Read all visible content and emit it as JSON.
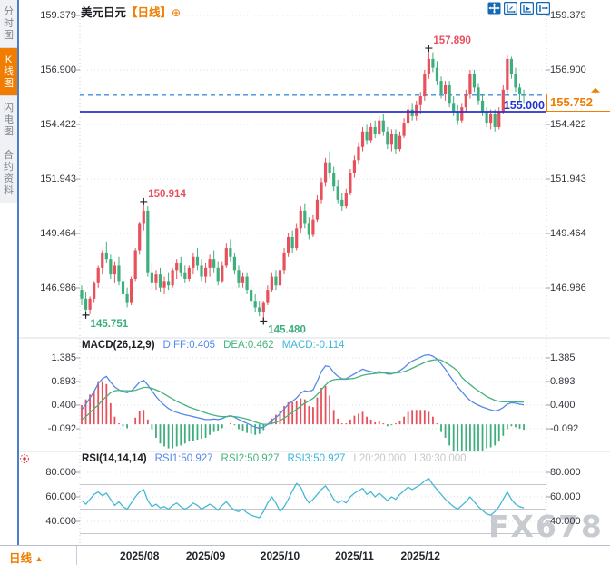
{
  "window": {
    "symbol": "美元日元",
    "period_bracket": "【日线】",
    "add_glyph": "⊕"
  },
  "sidebar": {
    "items": [
      {
        "label": "分时图",
        "selected": false
      },
      {
        "label": "K线图",
        "selected": true
      },
      {
        "label": "闪电图",
        "selected": false
      },
      {
        "label": "合约资料",
        "selected": false
      }
    ]
  },
  "toolbar": {
    "icons": [
      "pan-icon",
      "axis-scale-icon",
      "axis-playback-icon",
      "exit-right-icon"
    ]
  },
  "bottom_bar": {
    "period_label": "日线",
    "period_arrow": "▲"
  },
  "watermark": "FX678",
  "colors": {
    "up": "#e8505b",
    "down": "#3eae7d",
    "orange": "#f07d00",
    "solid_line_blue": "#2433cc",
    "dashed_line_blue": "#3f8fe0",
    "diff_blue": "#5588e8",
    "dea_green": "#44b37d",
    "macd_cyan": "#3db5d8",
    "rsi_line": "#45b8d4",
    "grid": "#d9dce1",
    "tick": "#9aa0a8",
    "axis_text": "#33373d"
  },
  "chart_data": {
    "type": "candlestick",
    "title": "美元日元 日线 (USD/JPY Daily)",
    "price_axis": [
      159.379,
      156.9,
      154.422,
      151.943,
      149.464,
      146.986
    ],
    "x_axis_labels": [
      "2025/08",
      "2025/09",
      "2025/10",
      "2025/11",
      "2025/12"
    ],
    "x_tick_indices": [
      14,
      30,
      48,
      66,
      82
    ],
    "current_price": "155.752",
    "alert_line_label": "155.000",
    "alert_line_value": 155.0,
    "dashed_line_value": 155.752,
    "annotations": [
      {
        "text": "157.890",
        "index": 84,
        "price": 157.89,
        "kind": "high",
        "color": "#e8505b"
      },
      {
        "text": "150.914",
        "index": 15,
        "price": 150.914,
        "kind": "high",
        "color": "#e8505b"
      },
      {
        "text": "145.751",
        "index": 1,
        "price": 145.751,
        "kind": "low",
        "color": "#3eae7d"
      },
      {
        "text": "145.480",
        "index": 44,
        "price": 145.48,
        "kind": "low",
        "color": "#3eae7d"
      }
    ],
    "candles": [
      [
        146.9,
        147.1,
        146.2,
        146.5
      ],
      [
        146.5,
        146.8,
        145.751,
        146.0
      ],
      [
        146.0,
        146.6,
        145.8,
        146.5
      ],
      [
        146.5,
        147.3,
        146.3,
        147.2
      ],
      [
        147.2,
        148.0,
        147.0,
        147.9
      ],
      [
        147.9,
        148.7,
        147.6,
        148.6
      ],
      [
        148.6,
        149.1,
        148.1,
        148.3
      ],
      [
        148.3,
        148.5,
        147.4,
        147.6
      ],
      [
        147.6,
        148.2,
        147.2,
        148.0
      ],
      [
        148.0,
        148.4,
        147.1,
        147.3
      ],
      [
        147.3,
        147.6,
        146.5,
        146.7
      ],
      [
        146.7,
        147.0,
        146.1,
        146.3
      ],
      [
        146.3,
        147.5,
        146.2,
        147.4
      ],
      [
        147.4,
        148.8,
        147.3,
        148.7
      ],
      [
        148.7,
        150.0,
        148.5,
        149.9
      ],
      [
        149.9,
        150.914,
        149.6,
        150.5
      ],
      [
        150.5,
        150.7,
        147.5,
        147.7
      ],
      [
        147.7,
        148.1,
        146.9,
        147.2
      ],
      [
        147.2,
        147.8,
        146.9,
        147.6
      ],
      [
        147.6,
        147.9,
        146.8,
        147.0
      ],
      [
        147.0,
        147.5,
        146.7,
        147.3
      ],
      [
        147.3,
        147.7,
        146.9,
        147.1
      ],
      [
        147.1,
        147.9,
        147.0,
        147.8
      ],
      [
        147.8,
        148.3,
        147.4,
        148.1
      ],
      [
        148.1,
        148.4,
        147.5,
        147.7
      ],
      [
        147.7,
        148.0,
        147.2,
        147.4
      ],
      [
        147.4,
        148.0,
        147.3,
        147.9
      ],
      [
        147.9,
        148.6,
        147.6,
        148.4
      ],
      [
        148.4,
        148.8,
        147.8,
        148.0
      ],
      [
        148.0,
        148.3,
        147.3,
        147.5
      ],
      [
        147.5,
        148.1,
        147.2,
        147.9
      ],
      [
        147.9,
        148.5,
        147.5,
        148.3
      ],
      [
        148.3,
        148.7,
        147.7,
        147.9
      ],
      [
        147.9,
        148.2,
        147.1,
        147.3
      ],
      [
        147.3,
        148.2,
        147.2,
        148.0
      ],
      [
        148.0,
        149.0,
        147.9,
        148.8
      ],
      [
        148.8,
        149.2,
        148.2,
        148.4
      ],
      [
        148.4,
        148.6,
        147.6,
        147.8
      ],
      [
        147.8,
        148.0,
        147.0,
        147.2
      ],
      [
        147.2,
        147.7,
        147.0,
        147.5
      ],
      [
        147.5,
        147.7,
        146.7,
        146.9
      ],
      [
        146.9,
        147.1,
        146.2,
        146.4
      ],
      [
        146.4,
        146.7,
        145.9,
        146.1
      ],
      [
        146.1,
        146.4,
        145.7,
        145.9
      ],
      [
        145.9,
        146.4,
        145.48,
        146.3
      ],
      [
        146.3,
        147.1,
        146.2,
        146.9
      ],
      [
        146.9,
        147.7,
        146.8,
        147.5
      ],
      [
        147.5,
        147.8,
        146.9,
        147.1
      ],
      [
        147.1,
        148.0,
        147.0,
        147.8
      ],
      [
        147.8,
        148.8,
        147.6,
        148.6
      ],
      [
        148.6,
        149.5,
        148.4,
        149.3
      ],
      [
        149.3,
        149.6,
        148.6,
        148.8
      ],
      [
        148.8,
        149.9,
        148.7,
        149.7
      ],
      [
        149.7,
        150.7,
        149.5,
        150.5
      ],
      [
        150.5,
        150.8,
        149.7,
        149.9
      ],
      [
        149.9,
        150.2,
        149.2,
        149.4
      ],
      [
        149.4,
        150.3,
        149.3,
        150.1
      ],
      [
        150.1,
        151.2,
        150.0,
        151.0
      ],
      [
        151.0,
        152.0,
        150.8,
        151.8
      ],
      [
        151.8,
        152.9,
        151.6,
        152.7
      ],
      [
        152.7,
        153.2,
        152.0,
        152.2
      ],
      [
        152.2,
        152.5,
        151.4,
        151.6
      ],
      [
        151.6,
        151.9,
        150.8,
        151.0
      ],
      [
        151.0,
        151.3,
        150.5,
        150.7
      ],
      [
        150.7,
        151.5,
        150.6,
        151.3
      ],
      [
        151.3,
        152.4,
        151.2,
        152.2
      ],
      [
        152.2,
        153.0,
        152.0,
        152.8
      ],
      [
        152.8,
        153.6,
        152.6,
        153.4
      ],
      [
        153.4,
        154.3,
        153.2,
        154.1
      ],
      [
        154.1,
        154.4,
        153.5,
        153.7
      ],
      [
        153.7,
        154.5,
        153.6,
        154.3
      ],
      [
        154.3,
        154.6,
        153.8,
        154.0
      ],
      [
        154.0,
        154.8,
        153.9,
        154.6
      ],
      [
        154.6,
        154.9,
        153.9,
        154.1
      ],
      [
        154.1,
        154.3,
        153.3,
        153.5
      ],
      [
        153.5,
        154.2,
        153.2,
        154.0
      ],
      [
        154.0,
        154.2,
        153.1,
        153.3
      ],
      [
        153.3,
        154.1,
        153.2,
        153.9
      ],
      [
        153.9,
        154.7,
        153.8,
        154.5
      ],
      [
        154.5,
        155.3,
        154.3,
        155.1
      ],
      [
        155.1,
        155.4,
        154.6,
        154.8
      ],
      [
        154.8,
        155.5,
        154.6,
        155.3
      ],
      [
        155.3,
        155.9,
        154.9,
        155.7
      ],
      [
        155.7,
        156.9,
        155.5,
        156.7
      ],
      [
        156.7,
        157.89,
        156.5,
        157.4
      ],
      [
        157.4,
        157.7,
        156.8,
        157.0
      ],
      [
        157.0,
        157.3,
        156.2,
        156.4
      ],
      [
        156.4,
        156.6,
        155.6,
        155.8
      ],
      [
        155.8,
        156.4,
        155.5,
        156.2
      ],
      [
        156.2,
        156.4,
        155.2,
        155.4
      ],
      [
        155.4,
        155.7,
        154.8,
        155.0
      ],
      [
        155.0,
        155.3,
        154.4,
        154.6
      ],
      [
        154.6,
        155.4,
        154.5,
        155.2
      ],
      [
        155.2,
        156.0,
        155.0,
        155.8
      ],
      [
        155.8,
        156.9,
        155.6,
        156.7
      ],
      [
        156.7,
        156.9,
        155.9,
        156.1
      ],
      [
        156.1,
        156.3,
        155.3,
        155.5
      ],
      [
        155.5,
        155.8,
        154.8,
        155.0
      ],
      [
        155.0,
        155.2,
        154.3,
        154.5
      ],
      [
        154.5,
        155.1,
        154.2,
        154.9
      ],
      [
        154.9,
        155.1,
        154.1,
        154.3
      ],
      [
        154.3,
        155.2,
        154.2,
        155.0
      ],
      [
        155.0,
        156.2,
        154.9,
        156.0
      ],
      [
        156.0,
        157.6,
        155.8,
        157.4
      ],
      [
        157.4,
        157.5,
        156.5,
        156.7
      ],
      [
        156.7,
        157.0,
        155.9,
        156.1
      ],
      [
        156.1,
        156.3,
        155.5,
        155.8
      ],
      [
        155.8,
        156.0,
        155.4,
        155.752
      ]
    ],
    "macd": {
      "name_label": "MACD(26,12,9)",
      "diff_label": "DIFF:0.405",
      "dea_label": "DEA:0.462",
      "macd_label": "MACD:-0.114",
      "axis": [
        1.385,
        0.893,
        0.4,
        -0.092
      ],
      "diff": [
        0.3,
        0.42,
        0.55,
        0.68,
        0.85,
        0.95,
        1.0,
        0.88,
        0.78,
        0.72,
        0.68,
        0.66,
        0.7,
        0.78,
        0.88,
        0.92,
        0.82,
        0.7,
        0.58,
        0.48,
        0.4,
        0.33,
        0.28,
        0.25,
        0.22,
        0.2,
        0.18,
        0.16,
        0.14,
        0.12,
        0.1,
        0.1,
        0.11,
        0.1,
        0.12,
        0.16,
        0.18,
        0.15,
        0.1,
        0.06,
        0.02,
        -0.02,
        -0.06,
        -0.08,
        -0.06,
        0.0,
        0.08,
        0.14,
        0.22,
        0.32,
        0.42,
        0.48,
        0.55,
        0.65,
        0.7,
        0.68,
        0.72,
        0.9,
        1.1,
        1.22,
        1.2,
        1.08,
        1.0,
        0.95,
        0.95,
        1.0,
        1.05,
        1.1,
        1.15,
        1.12,
        1.1,
        1.08,
        1.1,
        1.08,
        1.05,
        1.05,
        1.08,
        1.12,
        1.18,
        1.26,
        1.32,
        1.36,
        1.4,
        1.44,
        1.45,
        1.42,
        1.36,
        1.26,
        1.15,
        1.02,
        0.9,
        0.78,
        0.68,
        0.58,
        0.5,
        0.44,
        0.4,
        0.36,
        0.33,
        0.3,
        0.28,
        0.3,
        0.35,
        0.42,
        0.45,
        0.44,
        0.42,
        0.405
      ],
      "dea": [
        0.1,
        0.16,
        0.24,
        0.33,
        0.4,
        0.5,
        0.58,
        0.66,
        0.7,
        0.71,
        0.7,
        0.7,
        0.7,
        0.71,
        0.74,
        0.77,
        0.77,
        0.75,
        0.72,
        0.68,
        0.63,
        0.58,
        0.53,
        0.48,
        0.44,
        0.4,
        0.36,
        0.33,
        0.3,
        0.27,
        0.24,
        0.21,
        0.19,
        0.17,
        0.16,
        0.16,
        0.17,
        0.16,
        0.15,
        0.13,
        0.11,
        0.08,
        0.05,
        0.02,
        0.0,
        0.0,
        0.02,
        0.04,
        0.08,
        0.13,
        0.19,
        0.25,
        0.31,
        0.38,
        0.44,
        0.49,
        0.54,
        0.62,
        0.72,
        0.82,
        0.9,
        0.93,
        0.94,
        0.94,
        0.94,
        0.95,
        0.96,
        0.99,
        1.02,
        1.04,
        1.05,
        1.06,
        1.07,
        1.07,
        1.07,
        1.06,
        1.07,
        1.08,
        1.1,
        1.13,
        1.17,
        1.21,
        1.25,
        1.29,
        1.32,
        1.34,
        1.35,
        1.34,
        1.29,
        1.24,
        1.18,
        1.11,
        0.98,
        0.9,
        0.83,
        0.76,
        0.7,
        0.64,
        0.58,
        0.54,
        0.5,
        0.48,
        0.47,
        0.47,
        0.47,
        0.47,
        0.465,
        0.462
      ]
    },
    "rsi": {
      "name_label": "RSI(14,14,14)",
      "rsi1_label": "RSI1:50.927",
      "rsi2_label": "RSI2:50.927",
      "rsi3_label": "RSI3:50.927",
      "l20_label": "L20:20.000",
      "l30_label": "L30:30.000",
      "axis": [
        80.0,
        60.0,
        40.0
      ],
      "ref_lines": [
        70,
        50,
        30
      ],
      "values": [
        57,
        54,
        58,
        62,
        64,
        61,
        63,
        58,
        53,
        56,
        52,
        50,
        55,
        60,
        64,
        66,
        57,
        52,
        54,
        51,
        52,
        50,
        53,
        55,
        52,
        50,
        52,
        55,
        53,
        50,
        52,
        54,
        52,
        49,
        53,
        56,
        52,
        49,
        48,
        50,
        47,
        45,
        44,
        43,
        48,
        55,
        60,
        55,
        48,
        52,
        58,
        65,
        71,
        68,
        60,
        55,
        58,
        62,
        66,
        69,
        64,
        58,
        55,
        57,
        55,
        60,
        63,
        65,
        67,
        62,
        64,
        60,
        63,
        60,
        57,
        60,
        58,
        62,
        65,
        68,
        66,
        68,
        70,
        73,
        75,
        70,
        66,
        62,
        58,
        55,
        52,
        50,
        53,
        56,
        60,
        56,
        52,
        49,
        46,
        45,
        48,
        52,
        58,
        64,
        58,
        54,
        52,
        50.927
      ]
    }
  }
}
